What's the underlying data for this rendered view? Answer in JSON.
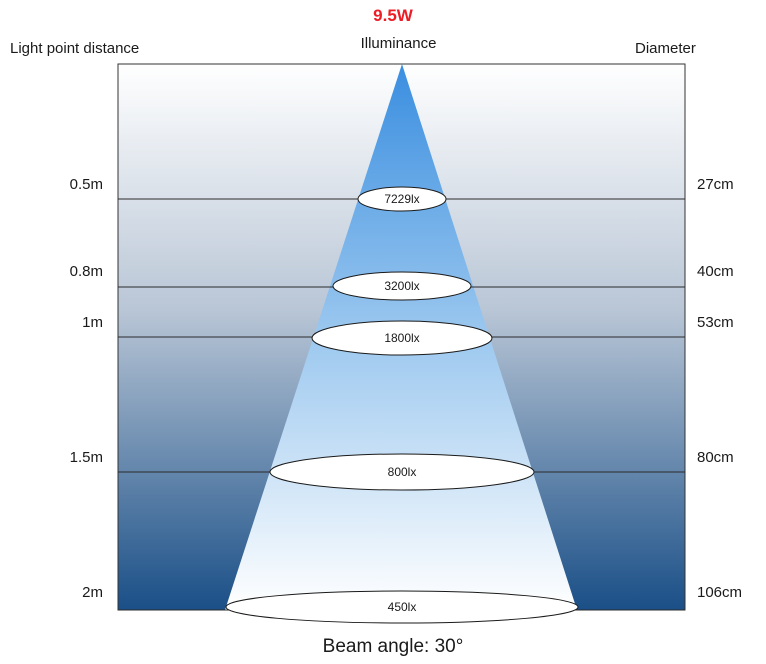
{
  "power": "9.5W",
  "headers": {
    "left": "Light point distance",
    "center": "Illuminance",
    "right": "Diameter"
  },
  "caption": "Beam angle: 30°",
  "beam_angle_deg": 30,
  "rows": [
    {
      "distance": "0.5m",
      "illuminance": "7229lx",
      "diameter": "27cm"
    },
    {
      "distance": "0.8m",
      "illuminance": "3200lx",
      "diameter": "40cm"
    },
    {
      "distance": "1m",
      "illuminance": "1800lx",
      "diameter": "53cm"
    },
    {
      "distance": "1.5m",
      "illuminance": "800lx",
      "diameter": "80cm"
    },
    {
      "distance": "2m",
      "illuminance": "450lx",
      "diameter": "106cm"
    }
  ],
  "colors": {
    "power_text": "#ee1c25",
    "panel_top": "#ffffff",
    "panel_bottom": "#1a4f87",
    "beam_top": "#3a8ee0",
    "beam_bottom": "#ffffff"
  }
}
